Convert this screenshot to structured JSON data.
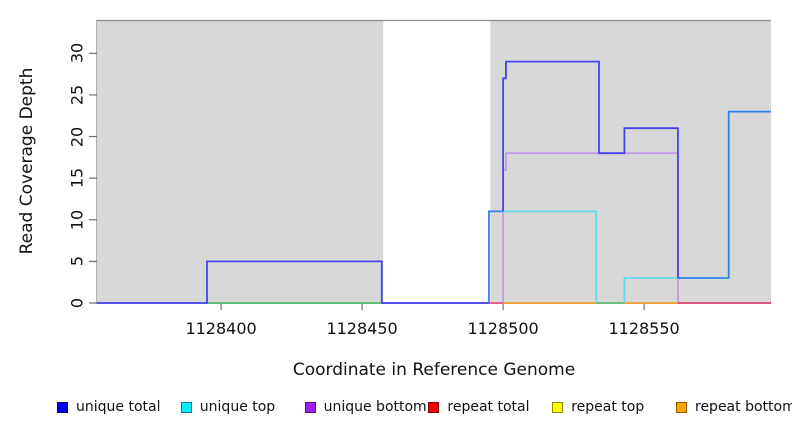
{
  "chart_data": {
    "type": "line",
    "subtype": "step-coverage-plot",
    "title": "",
    "xlabel": "Coordinate in Reference Genome",
    "ylabel": "Read Coverage Depth",
    "xlim": [
      1128356,
      1128595
    ],
    "ylim": [
      0,
      34
    ],
    "xticks": [
      1128400,
      1128450,
      1128500,
      1128550
    ],
    "yticks": [
      0,
      5,
      10,
      15,
      20,
      25,
      30
    ],
    "grid": false,
    "plot_background_color": "#D8D8D8",
    "no_data_gap": {
      "x0": 1128457.5,
      "x1": 1128495.5,
      "color": "#ffffff"
    },
    "legend_position": "bottom",
    "legend": [
      {
        "label": "unique total",
        "color": "#0000EE"
      },
      {
        "label": "unique top",
        "color": "#00EEFF"
      },
      {
        "label": "unique bottom",
        "color": "#A01FF0"
      },
      {
        "label": "repeat total",
        "color": "#EE0000"
      },
      {
        "label": "repeat top",
        "color": "#FFFF00"
      },
      {
        "label": "repeat bottom",
        "color": "#FFA500"
      }
    ],
    "series": [
      {
        "name": "unique total",
        "points": [
          [
            1128356,
            0
          ],
          [
            1128395,
            0
          ],
          [
            1128395,
            5
          ],
          [
            1128457,
            5
          ],
          [
            1128457,
            0
          ],
          [
            1128495,
            0
          ],
          [
            1128495,
            11
          ],
          [
            1128500,
            11
          ],
          [
            1128500,
            27
          ],
          [
            1128501,
            27
          ],
          [
            1128501,
            29
          ],
          [
            1128534,
            29
          ],
          [
            1128534,
            18
          ],
          [
            1128543,
            18
          ],
          [
            1128543,
            21
          ],
          [
            1128562,
            21
          ],
          [
            1128562,
            3
          ],
          [
            1128580,
            3
          ],
          [
            1128580,
            23
          ],
          [
            1128595,
            23
          ]
        ]
      },
      {
        "name": "unique top",
        "points": [
          [
            1128356,
            0
          ],
          [
            1128495,
            0
          ],
          [
            1128495,
            11
          ],
          [
            1128533,
            11
          ],
          [
            1128533,
            0
          ],
          [
            1128543,
            0
          ],
          [
            1128543,
            3
          ],
          [
            1128580,
            3
          ],
          [
            1128580,
            23
          ],
          [
            1128595,
            23
          ]
        ]
      },
      {
        "name": "unique bottom",
        "points": [
          [
            1128356,
            0
          ],
          [
            1128500,
            0
          ],
          [
            1128500,
            16
          ],
          [
            1128501,
            16
          ],
          [
            1128501,
            18
          ],
          [
            1128562,
            18
          ],
          [
            1128562,
            0
          ],
          [
            1128595,
            0
          ]
        ]
      },
      {
        "name": "repeat total",
        "points": [
          [
            1128356,
            0
          ],
          [
            1128595,
            0
          ]
        ]
      },
      {
        "name": "repeat top",
        "points": [
          [
            1128356,
            0
          ],
          [
            1128595,
            0
          ]
        ]
      },
      {
        "name": "repeat bottom",
        "points": [
          [
            1128356,
            0
          ],
          [
            1128595,
            0
          ]
        ]
      }
    ],
    "render_segments": [
      {
        "name": "unique-bottom-visible",
        "color": "#C49CE8",
        "points": [
          [
            1128356,
            0
          ],
          [
            1128500,
            0
          ],
          [
            1128500,
            16
          ],
          [
            1128501,
            16
          ],
          [
            1128501,
            18
          ],
          [
            1128562,
            18
          ],
          [
            1128562,
            0
          ],
          [
            1128595,
            0
          ]
        ]
      },
      {
        "name": "overlap-green-left",
        "color": "#58BE68",
        "points": [
          [
            1128395,
            0
          ],
          [
            1128457,
            0
          ]
        ]
      },
      {
        "name": "repeat-bottom-visible",
        "color": "#FFA030",
        "points": [
          [
            1128500,
            0
          ],
          [
            1128562,
            0
          ]
        ]
      },
      {
        "name": "overlap-green-mid",
        "color": "#5CC28C",
        "points": [
          [
            1128533,
            0
          ],
          [
            1128543,
            0
          ]
        ]
      },
      {
        "name": "unique-top-visible-1",
        "color": "#63DCE8",
        "points": [
          [
            1128500,
            11
          ],
          [
            1128533,
            11
          ],
          [
            1128533,
            0
          ]
        ]
      },
      {
        "name": "unique-top-visible-2",
        "color": "#63DCE8",
        "points": [
          [
            1128543,
            0
          ],
          [
            1128543,
            3
          ],
          [
            1128562,
            3
          ]
        ]
      },
      {
        "name": "repeat-total-visible-1",
        "color": "#E85A80",
        "points": [
          [
            1128495,
            0
          ],
          [
            1128500,
            0
          ]
        ]
      },
      {
        "name": "repeat-total-visible-2",
        "color": "#E04A72",
        "points": [
          [
            1128562,
            0
          ],
          [
            1128595,
            0
          ]
        ]
      },
      {
        "name": "unique-total-main-1",
        "color": "#4545EC",
        "points": [
          [
            1128356,
            0
          ],
          [
            1128395,
            0
          ],
          [
            1128395,
            5
          ],
          [
            1128457,
            5
          ],
          [
            1128457,
            0
          ],
          [
            1128495,
            0
          ]
        ]
      },
      {
        "name": "unique-total-overlap-1",
        "color": "#2F82F4",
        "points": [
          [
            1128495,
            0
          ],
          [
            1128495,
            11
          ],
          [
            1128500,
            11
          ]
        ]
      },
      {
        "name": "unique-total-main-2",
        "color": "#4545EC",
        "points": [
          [
            1128500,
            11
          ],
          [
            1128500,
            27
          ],
          [
            1128501,
            27
          ],
          [
            1128501,
            29
          ],
          [
            1128534,
            29
          ],
          [
            1128534,
            18
          ],
          [
            1128543,
            18
          ],
          [
            1128543,
            21
          ],
          [
            1128562,
            21
          ],
          [
            1128562,
            3
          ]
        ]
      },
      {
        "name": "unique-total-overlap-2",
        "color": "#2F82F4",
        "points": [
          [
            1128562,
            3
          ],
          [
            1128580,
            3
          ],
          [
            1128580,
            23
          ],
          [
            1128595,
            23
          ]
        ]
      }
    ]
  },
  "labels": {
    "x_axis_title": "Coordinate in Reference Genome",
    "y_axis_title": "Read Coverage Depth"
  }
}
